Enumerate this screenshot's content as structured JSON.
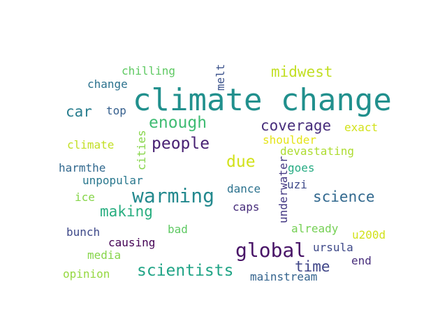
{
  "words": [
    {
      "text": "climate change",
      "color": "#21908d"
    },
    {
      "text": "midwest",
      "color": "#c2df23"
    },
    {
      "text": "melt",
      "color": "#3b528b"
    },
    {
      "text": "chilling",
      "color": "#5ec962"
    },
    {
      "text": "change",
      "color": "#2c728e"
    },
    {
      "text": "car",
      "color": "#287d8e"
    },
    {
      "text": "top",
      "color": "#355f8d"
    },
    {
      "text": "enough",
      "color": "#3fbc73"
    },
    {
      "text": "coverage",
      "color": "#472d7b"
    },
    {
      "text": "exact",
      "color": "#d2e21b"
    },
    {
      "text": "climate",
      "color": "#c2df23"
    },
    {
      "text": "cities",
      "color": "#86d549"
    },
    {
      "text": "people",
      "color": "#482173"
    },
    {
      "text": "shoulder",
      "color": "#e5e419"
    },
    {
      "text": "devastating",
      "color": "#addc30"
    },
    {
      "text": "due",
      "color": "#d2e21b"
    },
    {
      "text": "harmthe",
      "color": "#31688e"
    },
    {
      "text": "goes",
      "color": "#25ab82"
    },
    {
      "text": "underwater",
      "color": "#443983"
    },
    {
      "text": "unpopular",
      "color": "#2a788e"
    },
    {
      "text": "uzi",
      "color": "#3e4989"
    },
    {
      "text": "warming",
      "color": "#23898e"
    },
    {
      "text": "dance",
      "color": "#2c728e"
    },
    {
      "text": "science",
      "color": "#31688e"
    },
    {
      "text": "ice",
      "color": "#86d549"
    },
    {
      "text": "caps",
      "color": "#472d7b"
    },
    {
      "text": "making",
      "color": "#28ae80"
    },
    {
      "text": "bunch",
      "color": "#3e4989"
    },
    {
      "text": "bad",
      "color": "#5ec962"
    },
    {
      "text": "already",
      "color": "#75d054"
    },
    {
      "text": "u200d",
      "color": "#d2e21b"
    },
    {
      "text": "causing",
      "color": "#440154"
    },
    {
      "text": "global",
      "color": "#481467"
    },
    {
      "text": "ursula",
      "color": "#3e4989"
    },
    {
      "text": "media",
      "color": "#86d549"
    },
    {
      "text": "time",
      "color": "#404688"
    },
    {
      "text": "end",
      "color": "#472d7b"
    },
    {
      "text": "scientists",
      "color": "#20a486"
    },
    {
      "text": "opinion",
      "color": "#95d840"
    },
    {
      "text": "mainstream",
      "color": "#33638d"
    }
  ]
}
